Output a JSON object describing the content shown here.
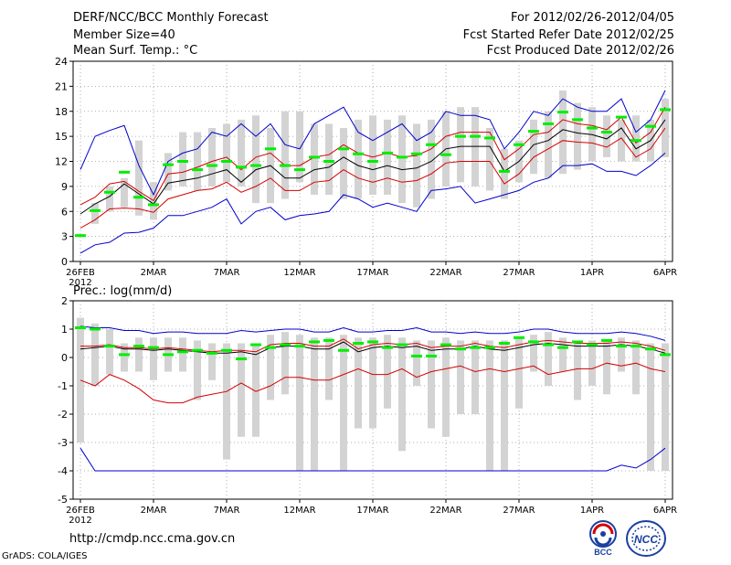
{
  "header": {
    "title": "DERF/NCC/BCC Monthly Forecast",
    "member_size": "Member Size=40",
    "variable": "Mean Surf. Temp.: °C",
    "period": "For 2012/02/26-2012/04/05",
    "refer_date": "Fcst Started Refer Date 2012/02/25",
    "produced_date": "Fcst Produced Date 2012/02/26"
  },
  "footer": {
    "url": "http://cmdp.ncc.cma.gov.cn",
    "credit": "GrADS: COLA/IGES",
    "logo_bcc": "BCC",
    "logo_ncc": "NCC"
  },
  "colors": {
    "box": "#d3d3d3",
    "green": "#00ee00",
    "red": "#d40000",
    "blue": "#0000cc",
    "black": "#000000",
    "grid": "#999999"
  },
  "chart_data": [
    {
      "type": "line",
      "title": "Mean Surf. Temp.: °C",
      "x_day_range": [
        0,
        40
      ],
      "x_ticks": [
        {
          "day": 0,
          "label": "26FEB",
          "sub": "2012"
        },
        {
          "day": 5,
          "label": "2MAR"
        },
        {
          "day": 10,
          "label": "7MAR"
        },
        {
          "day": 15,
          "label": "12MAR"
        },
        {
          "day": 20,
          "label": "17MAR"
        },
        {
          "day": 25,
          "label": "22MAR"
        },
        {
          "day": 30,
          "label": "27MAR"
        },
        {
          "day": 35,
          "label": "1APR"
        },
        {
          "day": 40,
          "label": "6APR"
        }
      ],
      "ylim": [
        0,
        24
      ],
      "y_ticks": [
        0,
        3,
        6,
        9,
        12,
        15,
        18,
        21,
        24
      ],
      "series": [
        {
          "name": "box_low",
          "values": [
            3.0,
            4.5,
            6.0,
            6.5,
            5.5,
            5.0,
            8.5,
            9.0,
            8.5,
            9.0,
            9.5,
            9.0,
            7.0,
            7.0,
            7.5,
            9.5,
            8.0,
            8.0,
            7.5,
            7.5,
            8.0,
            8.0,
            7.0,
            6.5,
            7.5,
            9.0,
            9.5,
            9.0,
            8.5,
            7.5,
            9.5,
            10.5,
            10.0,
            10.5,
            11.0,
            12.0,
            12.5,
            12.0,
            12.0,
            12.0,
            12.5
          ]
        },
        {
          "name": "box_high",
          "values": [
            3.3,
            7.0,
            9.0,
            10.0,
            14.5,
            9.5,
            13.0,
            15.5,
            15.5,
            16.0,
            16.5,
            17.0,
            17.5,
            16.0,
            18.0,
            18.0,
            16.5,
            16.5,
            16.0,
            17.0,
            17.5,
            17.0,
            17.5,
            16.5,
            17.0,
            18.0,
            18.5,
            18.5,
            16.0,
            13.5,
            14.5,
            17.0,
            18.0,
            20.5,
            19.0,
            18.5,
            17.5,
            17.0,
            17.5,
            17.0,
            19.5
          ]
        },
        {
          "name": "control",
          "values": [
            3.1,
            6.1,
            8.3,
            10.7,
            7.7,
            6.8,
            11.6,
            12.0,
            11.0,
            11.5,
            12.0,
            11.3,
            11.5,
            13.5,
            11.5,
            11.0,
            12.5,
            12.0,
            13.5,
            12.9,
            12.0,
            13.0,
            12.5,
            12.9,
            14.0,
            12.8,
            15.0,
            15.0,
            14.8,
            10.8,
            14.0,
            15.6,
            16.5,
            17.9,
            17.0,
            16.0,
            15.5,
            17.3,
            14.5,
            16.2,
            18.2
          ]
        },
        {
          "name": "blue_low",
          "values": [
            1.0,
            2.0,
            2.3,
            3.4,
            3.5,
            4.0,
            5.5,
            5.5,
            6.0,
            6.5,
            7.5,
            4.5,
            6.0,
            6.5,
            5.0,
            5.5,
            5.7,
            6.0,
            8.0,
            7.5,
            6.5,
            7.0,
            6.5,
            6.0,
            8.5,
            8.7,
            9.0,
            7.0,
            7.5,
            8.0,
            8.5,
            9.5,
            10.0,
            11.5,
            11.5,
            11.7,
            10.8,
            10.8,
            10.3,
            11.5,
            13.0
          ]
        },
        {
          "name": "red_low",
          "values": [
            4.0,
            5.0,
            6.3,
            6.4,
            6.3,
            5.9,
            7.5,
            8.0,
            8.5,
            8.7,
            9.5,
            8.3,
            9.0,
            10.0,
            8.5,
            8.5,
            9.5,
            9.7,
            11.0,
            10.0,
            9.5,
            10.0,
            9.5,
            9.7,
            10.5,
            11.8,
            12.0,
            12.0,
            12.0,
            9.3,
            10.5,
            12.5,
            13.5,
            14.5,
            14.3,
            14.2,
            13.7,
            14.8,
            12.5,
            13.5,
            16.0
          ]
        },
        {
          "name": "ensemble_mean",
          "values": [
            5.7,
            6.9,
            7.8,
            9.3,
            8.1,
            6.9,
            9.4,
            9.7,
            10.0,
            10.5,
            11.0,
            9.5,
            11.0,
            11.5,
            10.0,
            10.0,
            11.0,
            11.3,
            12.5,
            11.5,
            11.0,
            11.5,
            11.0,
            11.2,
            12.0,
            13.5,
            13.8,
            13.8,
            13.8,
            10.8,
            12.0,
            14.0,
            14.5,
            15.8,
            15.4,
            15.2,
            14.7,
            16.0,
            13.5,
            14.5,
            17.0
          ]
        },
        {
          "name": "red_high",
          "values": [
            6.8,
            7.7,
            9.3,
            9.6,
            8.4,
            7.3,
            10.5,
            10.7,
            11.3,
            12.0,
            12.5,
            11.0,
            12.5,
            13.0,
            11.5,
            11.5,
            12.5,
            12.8,
            14.0,
            13.0,
            12.5,
            13.0,
            12.5,
            12.7,
            13.5,
            15.0,
            15.5,
            15.5,
            15.5,
            12.2,
            13.5,
            15.2,
            15.5,
            17.0,
            16.5,
            16.3,
            15.8,
            17.3,
            14.2,
            15.5,
            18.5
          ]
        },
        {
          "name": "blue_high",
          "values": [
            11.0,
            15.0,
            15.7,
            16.3,
            11.5,
            8.0,
            12.0,
            13.0,
            13.5,
            15.5,
            15.0,
            16.5,
            15.0,
            16.5,
            14.0,
            13.5,
            16.5,
            17.5,
            18.5,
            15.5,
            14.5,
            15.5,
            16.5,
            14.5,
            15.5,
            18.0,
            17.5,
            17.5,
            17.0,
            13.5,
            15.5,
            18.0,
            17.5,
            19.5,
            18.5,
            18.0,
            18.0,
            19.5,
            15.5,
            17.0,
            20.5
          ]
        }
      ]
    },
    {
      "type": "line",
      "title": "Prec.: log(mm/d)",
      "x_day_range": [
        0,
        40
      ],
      "x_ticks": [
        {
          "day": 0,
          "label": "26FEB",
          "sub": "2012"
        },
        {
          "day": 5,
          "label": "2MAR"
        },
        {
          "day": 10,
          "label": "7MAR"
        },
        {
          "day": 15,
          "label": "12MAR"
        },
        {
          "day": 20,
          "label": "17MAR"
        },
        {
          "day": 25,
          "label": "22MAR"
        },
        {
          "day": 30,
          "label": "27MAR"
        },
        {
          "day": 35,
          "label": "1APR"
        },
        {
          "day": 40,
          "label": "6APR"
        }
      ],
      "ylim": [
        -5,
        2
      ],
      "y_ticks": [
        -5,
        -4,
        -3,
        -2,
        -1,
        0,
        1,
        2
      ],
      "series": [
        {
          "name": "box_low",
          "values": [
            -3.0,
            -1.0,
            -0.6,
            -0.5,
            -0.5,
            -0.8,
            -0.5,
            -0.5,
            -1.5,
            -0.8,
            -3.6,
            -2.8,
            -2.8,
            -1.5,
            -1.3,
            -4.0,
            -4.0,
            -1.5,
            -4.0,
            -2.5,
            -2.5,
            -1.8,
            -3.3,
            -1.0,
            -2.5,
            -2.8,
            -2.0,
            -2.0,
            -4.0,
            -4.0,
            -1.8,
            -0.5,
            -1.0,
            -0.5,
            -1.5,
            -1.0,
            -1.3,
            -0.5,
            -1.3,
            -4.0,
            -4.0
          ]
        },
        {
          "name": "box_high",
          "values": [
            1.4,
            1.2,
            1.0,
            0.5,
            0.7,
            0.7,
            0.7,
            0.7,
            0.6,
            0.5,
            0.5,
            0.5,
            0.5,
            0.8,
            0.9,
            0.8,
            0.7,
            0.7,
            0.8,
            0.7,
            0.7,
            0.8,
            0.7,
            0.6,
            0.6,
            0.7,
            0.6,
            0.6,
            0.6,
            0.6,
            0.7,
            0.8,
            0.9,
            0.7,
            0.5,
            0.6,
            0.6,
            0.7,
            0.6,
            0.5,
            0.5
          ]
        },
        {
          "name": "control",
          "values": [
            1.05,
            1.0,
            0.4,
            0.1,
            0.4,
            0.35,
            0.1,
            0.2,
            0.25,
            0.15,
            0.25,
            -0.05,
            0.45,
            0.35,
            0.45,
            0.4,
            0.55,
            0.6,
            0.25,
            0.5,
            0.55,
            0.35,
            0.45,
            0.05,
            0.05,
            0.45,
            0.3,
            0.35,
            0.35,
            0.5,
            0.7,
            0.55,
            0.45,
            0.35,
            0.55,
            0.45,
            0.6,
            0.4,
            0.4,
            0.3,
            0.1
          ]
        },
        {
          "name": "blue_low",
          "values": [
            -3.2,
            -4.0,
            -4.0,
            -4.0,
            -4.0,
            -4.0,
            -4.0,
            -4.0,
            -4.0,
            -4.0,
            -4.0,
            -4.0,
            -4.0,
            -4.0,
            -4.0,
            -4.0,
            -4.0,
            -4.0,
            -4.0,
            -4.0,
            -4.0,
            -4.0,
            -4.0,
            -4.0,
            -4.0,
            -4.0,
            -4.0,
            -4.0,
            -4.0,
            -4.0,
            -4.0,
            -4.0,
            -4.0,
            -4.0,
            -4.0,
            -4.0,
            -4.0,
            -3.8,
            -3.9,
            -3.6,
            -3.2
          ]
        },
        {
          "name": "red_low",
          "values": [
            -0.8,
            -1.0,
            -0.6,
            -0.8,
            -1.1,
            -1.5,
            -1.6,
            -1.6,
            -1.4,
            -1.3,
            -1.2,
            -0.9,
            -1.2,
            -1.0,
            -0.7,
            -0.7,
            -0.8,
            -0.8,
            -0.6,
            -0.4,
            -0.6,
            -0.6,
            -0.4,
            -0.7,
            -0.5,
            -0.4,
            -0.3,
            -0.5,
            -0.4,
            -0.5,
            -0.4,
            -0.3,
            -0.6,
            -0.5,
            -0.4,
            -0.4,
            -0.2,
            -0.3,
            -0.2,
            -0.4,
            -0.5
          ]
        },
        {
          "name": "ensemble_mean",
          "values": [
            0.3,
            0.35,
            0.4,
            0.3,
            0.3,
            0.25,
            0.3,
            0.25,
            0.2,
            0.15,
            0.15,
            0.2,
            0.1,
            0.35,
            0.4,
            0.4,
            0.3,
            0.3,
            0.55,
            0.2,
            0.35,
            0.4,
            0.35,
            0.4,
            0.25,
            0.3,
            0.3,
            0.4,
            0.3,
            0.25,
            0.35,
            0.45,
            0.5,
            0.45,
            0.4,
            0.4,
            0.4,
            0.45,
            0.4,
            0.3,
            0.15
          ]
        },
        {
          "name": "red_high",
          "values": [
            0.4,
            0.4,
            0.45,
            0.35,
            0.35,
            0.3,
            0.35,
            0.3,
            0.25,
            0.2,
            0.25,
            0.25,
            0.2,
            0.45,
            0.5,
            0.5,
            0.4,
            0.4,
            0.65,
            0.3,
            0.45,
            0.5,
            0.45,
            0.5,
            0.35,
            0.4,
            0.4,
            0.5,
            0.4,
            0.35,
            0.45,
            0.55,
            0.6,
            0.55,
            0.5,
            0.5,
            0.5,
            0.55,
            0.5,
            0.4,
            0.25
          ]
        },
        {
          "name": "blue_high",
          "values": [
            1.1,
            1.05,
            1.05,
            0.95,
            0.95,
            0.85,
            0.9,
            0.9,
            0.85,
            0.85,
            0.85,
            0.95,
            0.9,
            0.95,
            1.0,
            1.0,
            0.9,
            0.9,
            1.05,
            0.9,
            0.9,
            0.95,
            0.95,
            1.05,
            0.9,
            0.9,
            0.85,
            0.9,
            0.85,
            0.85,
            0.9,
            1.0,
            1.0,
            0.9,
            0.85,
            0.85,
            0.85,
            0.9,
            0.85,
            0.75,
            0.6
          ]
        }
      ]
    }
  ]
}
